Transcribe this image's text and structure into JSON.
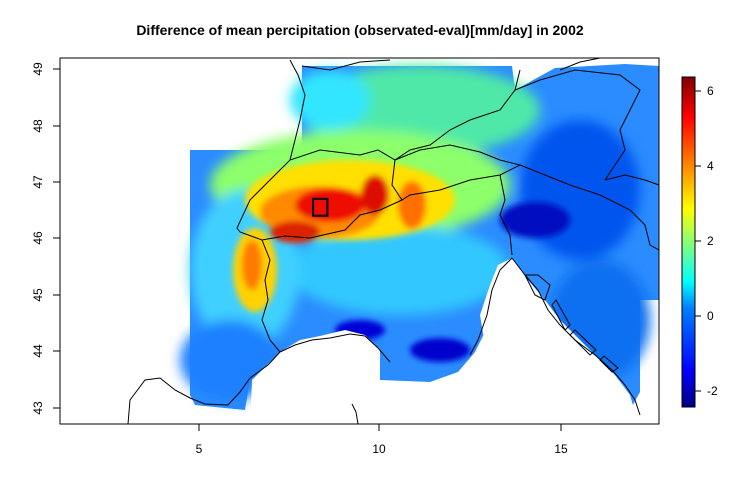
{
  "title": "Difference of mean percipitation (observated-eval)[mm/day] in 2002",
  "map": {
    "x_ticks": [
      "5",
      "10",
      "15"
    ],
    "y_ticks": [
      "43",
      "44",
      "45",
      "46",
      "47",
      "48",
      "49"
    ],
    "x_range": [
      1.0,
      17.8
    ],
    "y_range": [
      42.7,
      49.2
    ],
    "marker": {
      "name": "study-area-box",
      "lon": [
        8.1,
        8.5
      ],
      "lat": [
        46.4,
        46.7
      ]
    }
  },
  "legend": {
    "ticks": [
      "-2",
      "0",
      "2",
      "4",
      "6"
    ],
    "range": [
      -2.6,
      6.4
    ],
    "colors": [
      "#00007f",
      "#0000ff",
      "#007fff",
      "#00ffff",
      "#7fff7f",
      "#ffff00",
      "#ff7f00",
      "#ff0000",
      "#7f0000"
    ]
  }
}
